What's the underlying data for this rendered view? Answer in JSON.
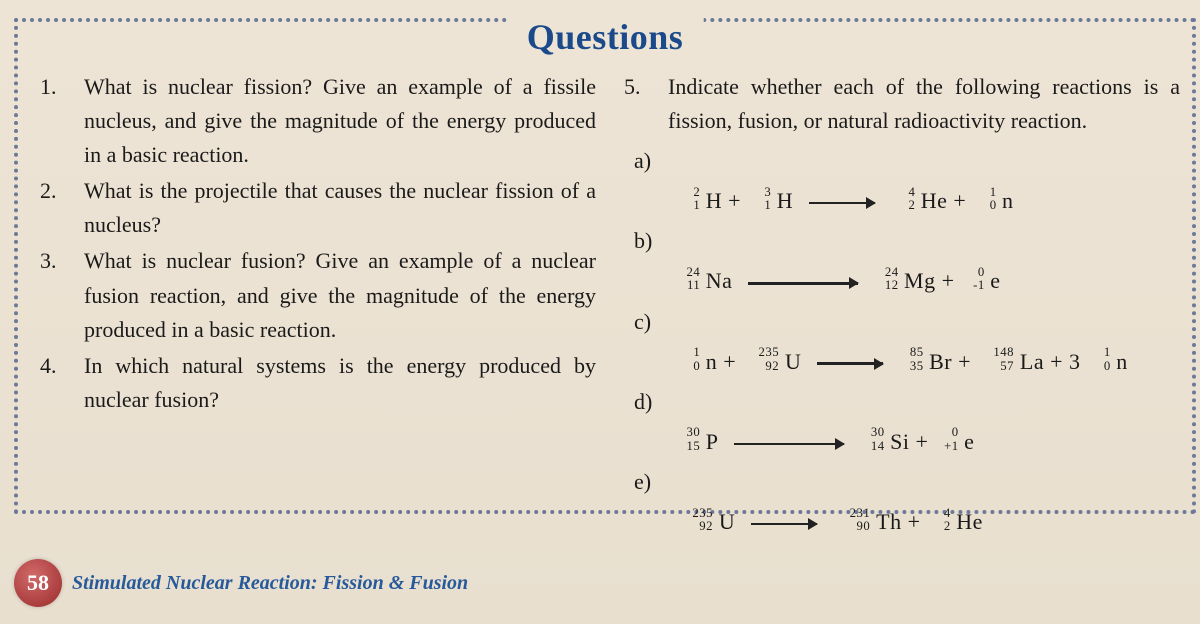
{
  "title": "Questions",
  "page_number": "58",
  "footer": "Stimulated Nuclear Reaction: Fission & Fusion",
  "left": {
    "q1": {
      "n": "1.",
      "t": "What is nuclear fission? Give an example of a fissile nucleus, and give the magnitude of the energy produced in a basic reaction."
    },
    "q2": {
      "n": "2.",
      "t": "What is the projectile that causes the nuclear fission of a nucleus?"
    },
    "q3": {
      "n": "3.",
      "t": "What is nuclear fusion? Give an example of a nuclear fusion reaction, and give the magnitude of the energy produced in a basic reaction."
    },
    "q4": {
      "n": "4.",
      "t": "In which natural systems is the energy produced by nuclear fusion?"
    }
  },
  "right": {
    "q5": {
      "n": "5.",
      "t": "Indicate whether each of the following reactions is a fission, fusion, or natural radioactivity reaction."
    },
    "labels": {
      "a": "a)",
      "b": "b)",
      "c": "c)",
      "d": "d)",
      "e": "e)"
    }
  },
  "eq": {
    "a": {
      "lhs": [
        {
          "a": "2",
          "z": "1",
          "s": "H"
        },
        {
          "a": "3",
          "z": "1",
          "s": "H"
        }
      ],
      "rhs": [
        {
          "a": "4",
          "z": "2",
          "s": "He"
        },
        {
          "a": "1",
          "z": "0",
          "s": "n"
        }
      ]
    },
    "b": {
      "lhs": [
        {
          "a": "24",
          "z": "11",
          "s": "Na"
        }
      ],
      "rhs": [
        {
          "a": "24",
          "z": "12",
          "s": "Mg"
        },
        {
          "a": "0",
          "z": "-1",
          "s": "e"
        }
      ],
      "long": true
    },
    "c": {
      "lhs": [
        {
          "a": "1",
          "z": "0",
          "s": "n"
        },
        {
          "a": "235",
          "z": "92",
          "s": "U",
          "w": true
        }
      ],
      "rhs": [
        {
          "a": "85",
          "z": "35",
          "s": "Br"
        },
        {
          "a": "148",
          "z": "57",
          "s": "La",
          "w": true
        },
        {
          "coef": "3",
          "a": "1",
          "z": "0",
          "s": "n"
        }
      ]
    },
    "d": {
      "lhs": [
        {
          "a": "30",
          "z": "15",
          "s": "P"
        }
      ],
      "rhs": [
        {
          "a": "30",
          "z": "14",
          "s": "Si"
        },
        {
          "a": "0",
          "z": "+1",
          "s": "e"
        }
      ],
      "long": true
    },
    "e": {
      "lhs": [
        {
          "a": "235",
          "z": "92",
          "s": "U",
          "w": true
        }
      ],
      "rhs": [
        {
          "a": "231",
          "z": "90",
          "s": "Th",
          "w": true
        },
        {
          "a": "4",
          "z": "2",
          "s": "He"
        }
      ]
    }
  },
  "style": {
    "title_color": "#1a4a8a",
    "border_color": "#6b7a99",
    "footer_color": "#265a9a",
    "badge_bg": "#9a2a2a",
    "body_font_size": 22,
    "title_font_size": 36
  }
}
